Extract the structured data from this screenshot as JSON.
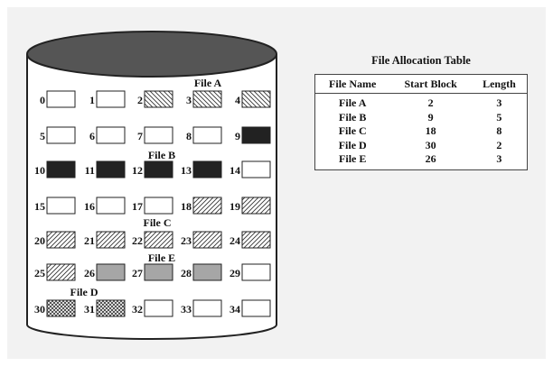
{
  "disk": {
    "file_labels": [
      {
        "text": "File A",
        "file": "A"
      },
      {
        "text": "File B",
        "file": "B"
      },
      {
        "text": "File C",
        "file": "C"
      },
      {
        "text": "File E",
        "file": "E"
      },
      {
        "text": "File D",
        "file": "D"
      }
    ],
    "rows": [
      [
        {
          "n": "0",
          "f": ""
        },
        {
          "n": "1",
          "f": ""
        },
        {
          "n": "2",
          "f": "A"
        },
        {
          "n": "3",
          "f": "A"
        },
        {
          "n": "4",
          "f": "A"
        }
      ],
      [
        {
          "n": "5",
          "f": ""
        },
        {
          "n": "6",
          "f": ""
        },
        {
          "n": "7",
          "f": ""
        },
        {
          "n": "8",
          "f": ""
        },
        {
          "n": "9",
          "f": "B"
        }
      ],
      [
        {
          "n": "10",
          "f": "B"
        },
        {
          "n": "11",
          "f": "B"
        },
        {
          "n": "12",
          "f": "B"
        },
        {
          "n": "13",
          "f": "B"
        },
        {
          "n": "14",
          "f": ""
        }
      ],
      [
        {
          "n": "15",
          "f": ""
        },
        {
          "n": "16",
          "f": ""
        },
        {
          "n": "17",
          "f": ""
        },
        {
          "n": "18",
          "f": "C"
        },
        {
          "n": "19",
          "f": "C"
        }
      ],
      [
        {
          "n": "20",
          "f": "C"
        },
        {
          "n": "21",
          "f": "C"
        },
        {
          "n": "22",
          "f": "C"
        },
        {
          "n": "23",
          "f": "C"
        },
        {
          "n": "24",
          "f": "C"
        }
      ],
      [
        {
          "n": "25",
          "f": "C"
        },
        {
          "n": "26",
          "f": "E"
        },
        {
          "n": "27",
          "f": "E"
        },
        {
          "n": "28",
          "f": "E"
        },
        {
          "n": "29",
          "f": ""
        }
      ],
      [
        {
          "n": "30",
          "f": "D"
        },
        {
          "n": "31",
          "f": "D"
        },
        {
          "n": "32",
          "f": ""
        },
        {
          "n": "33",
          "f": ""
        },
        {
          "n": "34",
          "f": ""
        }
      ]
    ],
    "fills": {
      "A": "hatch-back",
      "B": "#222222",
      "C": "hatch-fwd",
      "D": "crosshatch",
      "E": "#a6a6a6",
      "": "#ffffff"
    }
  },
  "fat": {
    "title": "File Allocation Table",
    "headers": [
      "File Name",
      "Start Block",
      "Length"
    ],
    "rows": [
      [
        "File A",
        "2",
        "3"
      ],
      [
        "File B",
        "9",
        "5"
      ],
      [
        "File C",
        "18",
        "8"
      ],
      [
        "File D",
        "30",
        "2"
      ],
      [
        "File E",
        "26",
        "3"
      ]
    ]
  }
}
